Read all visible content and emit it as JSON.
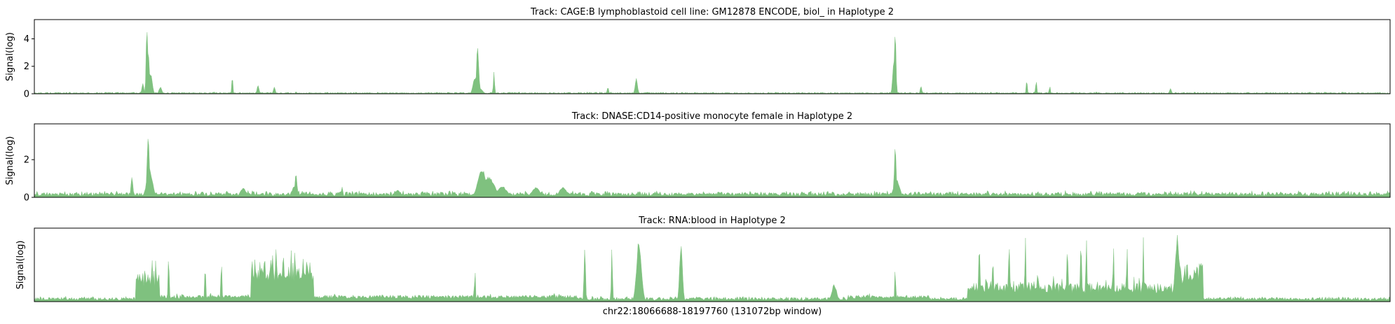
{
  "chart_data": [
    {
      "type": "area",
      "title": "Track: CAGE:B lymphoblastoid cell line: GM12878 ENCODE, biol_ in Haplotype 2",
      "ylabel": "Signal(log)",
      "xlabel": "",
      "ylim": [
        0,
        5.4
      ],
      "yticks": [
        0,
        2,
        4
      ],
      "color": "#7fc17f",
      "baseline": 0.05,
      "noise": 0.07,
      "peaks": [
        {
          "x": 0.083,
          "y": 5.2,
          "w": 0.0008
        },
        {
          "x": 0.084,
          "y": 3.2,
          "w": 0.0012
        },
        {
          "x": 0.086,
          "y": 1.4,
          "w": 0.0015
        },
        {
          "x": 0.08,
          "y": 0.8,
          "w": 0.001
        },
        {
          "x": 0.093,
          "y": 0.5,
          "w": 0.0015
        },
        {
          "x": 0.146,
          "y": 1.4,
          "w": 0.0006
        },
        {
          "x": 0.165,
          "y": 0.7,
          "w": 0.001
        },
        {
          "x": 0.177,
          "y": 0.5,
          "w": 0.001
        },
        {
          "x": 0.327,
          "y": 3.6,
          "w": 0.0012
        },
        {
          "x": 0.325,
          "y": 1.2,
          "w": 0.002
        },
        {
          "x": 0.339,
          "y": 1.8,
          "w": 0.0006
        },
        {
          "x": 0.328,
          "y": 0.5,
          "w": 0.003
        },
        {
          "x": 0.423,
          "y": 0.5,
          "w": 0.0008
        },
        {
          "x": 0.444,
          "y": 1.2,
          "w": 0.0012
        },
        {
          "x": 0.635,
          "y": 4.9,
          "w": 0.0008
        },
        {
          "x": 0.634,
          "y": 2.6,
          "w": 0.0012
        },
        {
          "x": 0.654,
          "y": 0.6,
          "w": 0.0008
        },
        {
          "x": 0.732,
          "y": 1.1,
          "w": 0.0006
        },
        {
          "x": 0.739,
          "y": 1.1,
          "w": 0.0006
        },
        {
          "x": 0.749,
          "y": 0.6,
          "w": 0.0006
        },
        {
          "x": 0.838,
          "y": 0.4,
          "w": 0.001
        }
      ]
    },
    {
      "type": "area",
      "title": "Track: DNASE:CD14-positive monocyte female in Haplotype 2",
      "ylabel": "Signal(log)",
      "xlabel": "",
      "ylim": [
        0,
        3.9
      ],
      "yticks": [
        0,
        2
      ],
      "color": "#7fc17f",
      "baseline": 0.18,
      "noise": 0.12,
      "peaks": [
        {
          "x": 0.084,
          "y": 3.6,
          "w": 0.0012
        },
        {
          "x": 0.085,
          "y": 1.5,
          "w": 0.003
        },
        {
          "x": 0.072,
          "y": 1.2,
          "w": 0.001
        },
        {
          "x": 0.193,
          "y": 1.4,
          "w": 0.001
        },
        {
          "x": 0.192,
          "y": 0.6,
          "w": 0.003
        },
        {
          "x": 0.227,
          "y": 0.6,
          "w": 0.0008
        },
        {
          "x": 0.33,
          "y": 1.6,
          "w": 0.004
        },
        {
          "x": 0.335,
          "y": 1.1,
          "w": 0.006
        },
        {
          "x": 0.345,
          "y": 0.6,
          "w": 0.005
        },
        {
          "x": 0.37,
          "y": 0.55,
          "w": 0.004
        },
        {
          "x": 0.39,
          "y": 0.55,
          "w": 0.004
        },
        {
          "x": 0.635,
          "y": 2.7,
          "w": 0.001
        },
        {
          "x": 0.636,
          "y": 1.0,
          "w": 0.003
        },
        {
          "x": 0.154,
          "y": 0.5,
          "w": 0.003
        },
        {
          "x": 0.268,
          "y": 0.4,
          "w": 0.003
        }
      ]
    },
    {
      "type": "area",
      "title": "Track: RNA:blood in Haplotype 2",
      "ylabel": "Signal(log)",
      "xlabel": "chr22:18066688-18197760 (131072bp window)",
      "ylim": [
        0,
        1.0
      ],
      "yticks": [],
      "color": "#7fc17f",
      "baseline": 0.04,
      "noise": 0.02,
      "blocks": [
        {
          "x0": 0.075,
          "x1": 0.092,
          "y": 0.42,
          "noise": 0.25
        },
        {
          "x0": 0.092,
          "x1": 0.16,
          "y": 0.09,
          "noise": 0.03
        },
        {
          "x0": 0.16,
          "x1": 0.206,
          "y": 0.58,
          "noise": 0.28
        },
        {
          "x0": 0.206,
          "x1": 0.4,
          "y": 0.09,
          "noise": 0.03
        },
        {
          "x0": 0.6,
          "x1": 0.66,
          "y": 0.09,
          "noise": 0.03
        },
        {
          "x0": 0.688,
          "x1": 0.74,
          "y": 0.28,
          "noise": 0.18
        },
        {
          "x0": 0.74,
          "x1": 0.84,
          "y": 0.25,
          "noise": 0.12
        },
        {
          "x0": 0.84,
          "x1": 0.862,
          "y": 0.52,
          "noise": 0.2
        }
      ],
      "peaks": [
        {
          "x": 0.087,
          "y": 0.62,
          "w": 0.0006
        },
        {
          "x": 0.099,
          "y": 0.7,
          "w": 0.0006
        },
        {
          "x": 0.126,
          "y": 0.55,
          "w": 0.0006
        },
        {
          "x": 0.138,
          "y": 0.6,
          "w": 0.0006
        },
        {
          "x": 0.325,
          "y": 0.48,
          "w": 0.0005
        },
        {
          "x": 0.406,
          "y": 0.78,
          "w": 0.0008
        },
        {
          "x": 0.426,
          "y": 0.82,
          "w": 0.0006
        },
        {
          "x": 0.446,
          "y": 0.86,
          "w": 0.0025
        },
        {
          "x": 0.477,
          "y": 0.84,
          "w": 0.0015
        },
        {
          "x": 0.59,
          "y": 0.24,
          "w": 0.0025
        },
        {
          "x": 0.635,
          "y": 0.52,
          "w": 0.0005
        },
        {
          "x": 0.697,
          "y": 0.82,
          "w": 0.0008
        },
        {
          "x": 0.707,
          "y": 0.6,
          "w": 0.0008
        },
        {
          "x": 0.719,
          "y": 0.9,
          "w": 0.0006
        },
        {
          "x": 0.731,
          "y": 0.9,
          "w": 0.0006
        },
        {
          "x": 0.762,
          "y": 0.82,
          "w": 0.0006
        },
        {
          "x": 0.772,
          "y": 0.94,
          "w": 0.0006
        },
        {
          "x": 0.776,
          "y": 0.94,
          "w": 0.0006
        },
        {
          "x": 0.796,
          "y": 0.8,
          "w": 0.0006
        },
        {
          "x": 0.806,
          "y": 0.85,
          "w": 0.0006
        },
        {
          "x": 0.818,
          "y": 0.92,
          "w": 0.0006
        },
        {
          "x": 0.843,
          "y": 0.92,
          "w": 0.002
        }
      ]
    }
  ]
}
